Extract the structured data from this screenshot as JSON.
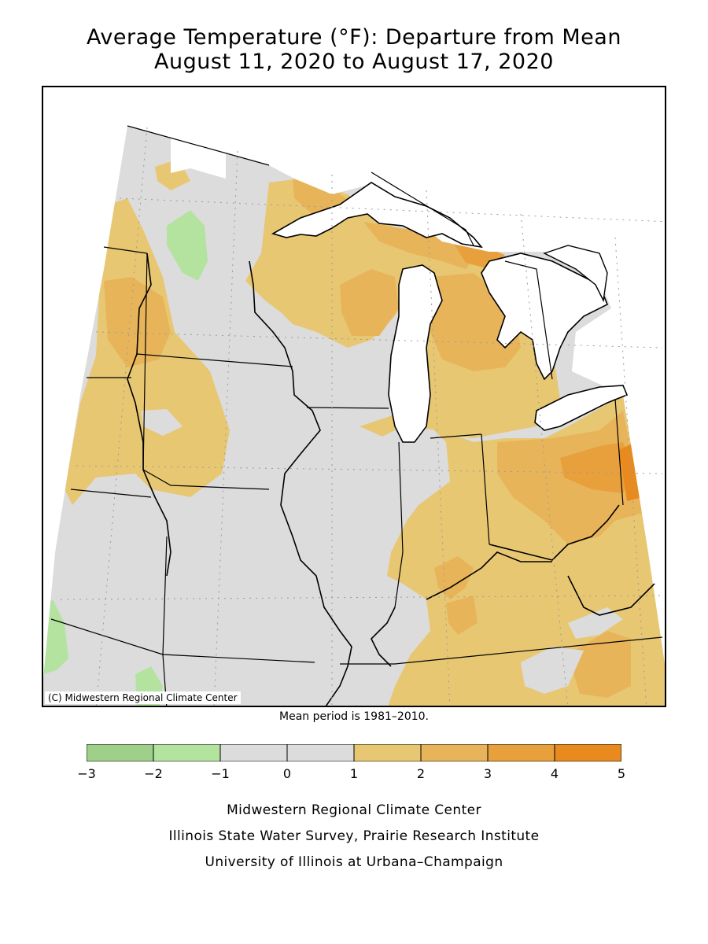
{
  "title_line1": "Average Temperature (°F): Departure from Mean",
  "title_line2": "August 11, 2020 to August 17, 2020",
  "copyright": "(C) Midwestern Regional Climate Center",
  "mean_period": "Mean period is 1981–2010.",
  "legend": {
    "ticks": [
      "−3",
      "−2",
      "−1",
      "0",
      "1",
      "2",
      "3",
      "4",
      "5"
    ],
    "bins": [
      {
        "from": -3,
        "to": -2,
        "color": "#9fd08a"
      },
      {
        "from": -2,
        "to": -1,
        "color": "#b4e3a0"
      },
      {
        "from": -1,
        "to": 0,
        "color": "#dcdcdc"
      },
      {
        "from": 0,
        "to": 1,
        "color": "#dcdcdc"
      },
      {
        "from": 1,
        "to": 2,
        "color": "#e8c773"
      },
      {
        "from": 2,
        "to": 3,
        "color": "#e8b45a"
      },
      {
        "from": 3,
        "to": 4,
        "color": "#e8a03c"
      },
      {
        "from": 4,
        "to": 5,
        "color": "#e88a1e"
      }
    ]
  },
  "credits": {
    "line1": "Midwestern Regional Climate Center",
    "line2": "Illinois State Water Survey, Prairie Research Institute",
    "line3": "University of Illinois at Urbana–Champaign"
  }
}
